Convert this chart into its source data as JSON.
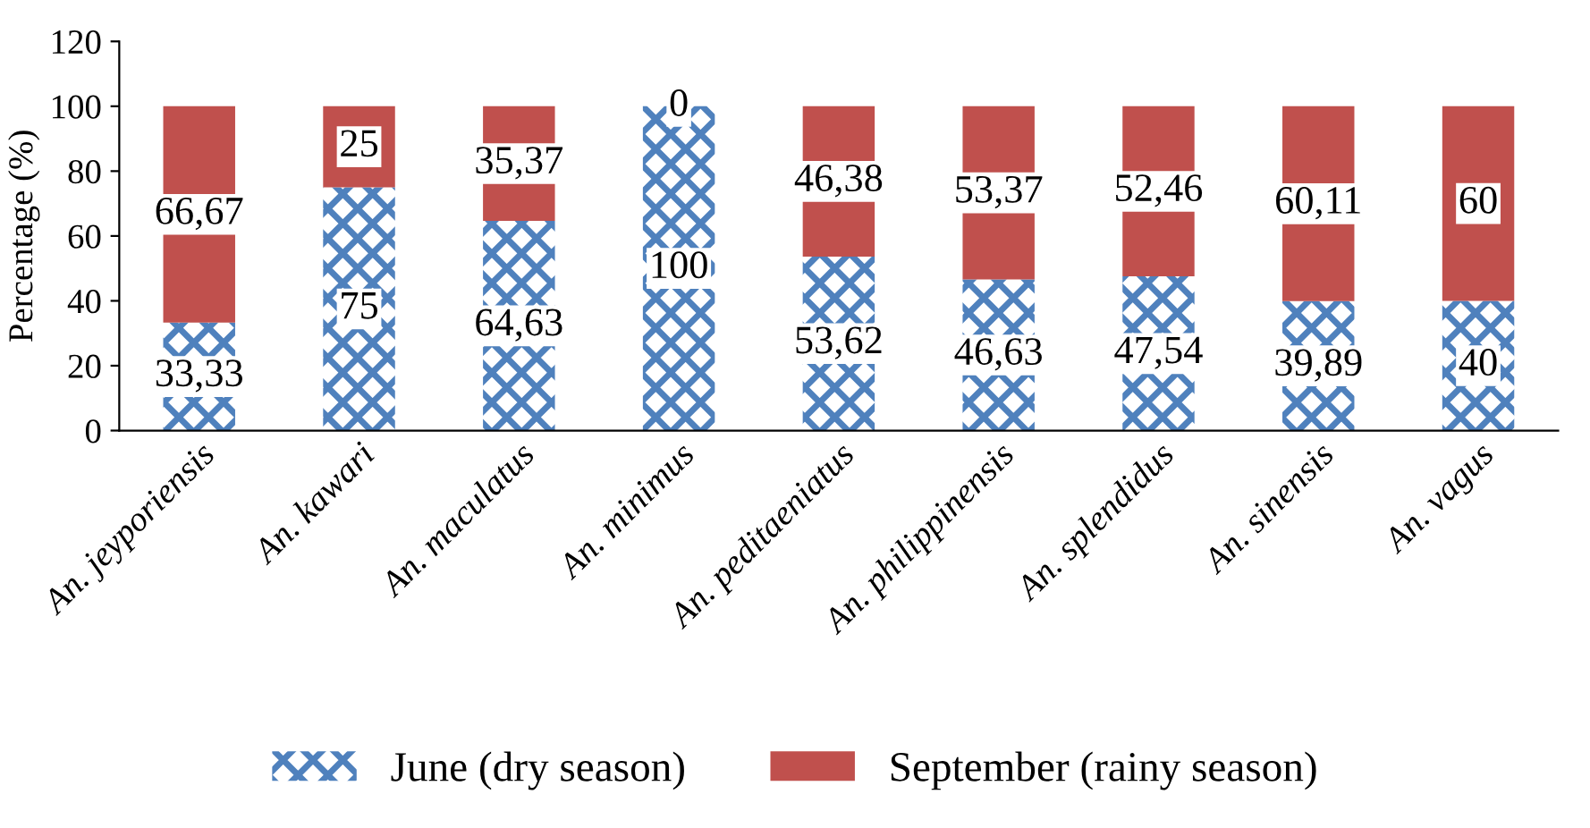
{
  "chart_data": {
    "type": "bar",
    "stacked": true,
    "ylabel": "Percentage (%)",
    "categories": [
      "An. jeyporiensis",
      "An. kawari",
      "An. maculatus",
      "An. minimus",
      "An. peditaeniatus",
      "An. philippinensis",
      "An. splendidus",
      "An. sinensis",
      "An. vagus"
    ],
    "series": [
      {
        "name": "June (dry season)",
        "color": "#4f81bd",
        "values": [
          33.33,
          75,
          64.63,
          100,
          53.62,
          46.63,
          47.54,
          39.89,
          40
        ],
        "value_labels": [
          "33,33",
          "75",
          "64,63",
          "100",
          "53,62",
          "46,63",
          "47,54",
          "39,89",
          "40"
        ]
      },
      {
        "name": "September (rainy season)",
        "color": "#c0504d",
        "values": [
          66.67,
          25,
          35.37,
          0,
          46.38,
          53.37,
          52.46,
          60.11,
          60
        ],
        "value_labels": [
          "66,67",
          "25",
          "35,37",
          "0",
          "46,38",
          "53,37",
          "52,46",
          "60,11",
          "60"
        ]
      }
    ],
    "ylim": [
      0,
      120
    ],
    "yticks": [
      0,
      20,
      40,
      60,
      80,
      100,
      120
    ],
    "grid": false,
    "legend": "bottom"
  }
}
